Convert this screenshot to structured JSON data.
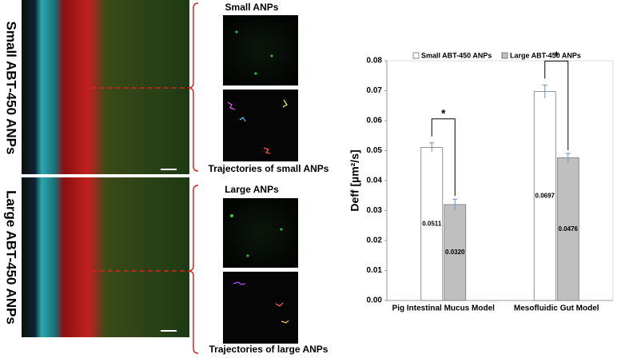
{
  "panels": {
    "row_labels": [
      "Small ABT-450 ANPs",
      "Large ABT-450 ANPs"
    ],
    "insets": [
      {
        "title": "Small ANPs",
        "caption": "Trajectories of small ANPs"
      },
      {
        "title": "Large ANPs",
        "caption": "Trajectories of large ANPs"
      }
    ]
  },
  "chart_data": {
    "type": "bar",
    "y_label": "Deff [µm²/s]",
    "categories": [
      "Pig Intestinal Mucus Model",
      "Mesofluidic Gut Model"
    ],
    "series": [
      {
        "name": "Small ABT-450 ANPs",
        "color": "#ffffff",
        "values": [
          0.0511,
          0.0697
        ],
        "value_labels": [
          "0.0511",
          "0.0697"
        ],
        "errors": [
          0.0015,
          0.0022
        ]
      },
      {
        "name": "Large ABT-450 ANPs",
        "color": "#bfbfbf",
        "values": [
          0.032,
          0.0476
        ],
        "value_labels": [
          "0.0320",
          "0.0476"
        ],
        "errors": [
          0.0018,
          0.0015
        ]
      }
    ],
    "ylim": [
      0,
      0.08
    ],
    "yticks": [
      {
        "value": 0,
        "label": "0.00"
      },
      {
        "value": 0.01,
        "label": "0.01"
      },
      {
        "value": 0.02,
        "label": "0.02"
      },
      {
        "value": 0.03,
        "label": "0.03"
      },
      {
        "value": 0.04,
        "label": "0.04"
      },
      {
        "value": 0.05,
        "label": "0.05"
      },
      {
        "value": 0.06,
        "label": "0.06"
      },
      {
        "value": 0.07,
        "label": "0.07"
      },
      {
        "value": 0.08,
        "label": "0.08"
      }
    ],
    "grid": false,
    "legend": "top",
    "annotations": [
      "*",
      "*"
    ]
  }
}
